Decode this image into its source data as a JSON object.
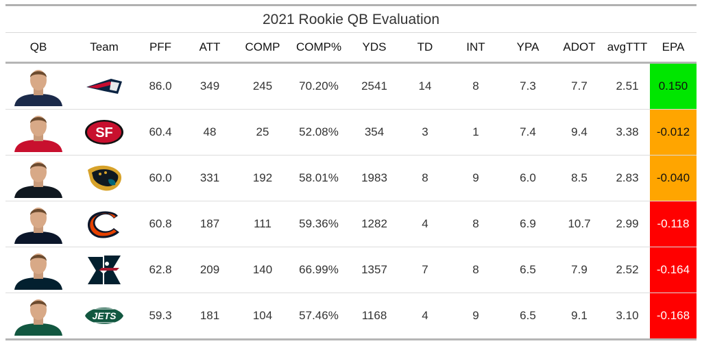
{
  "title": "2021 Rookie QB Evaluation",
  "columns": [
    "QB",
    "Team",
    "PFF",
    "ATT",
    "COMP",
    "COMP%",
    "YDS",
    "TD",
    "INT",
    "YPA",
    "ADOT",
    "avgTTT",
    "EPA"
  ],
  "colors": {
    "positive": "#00e600",
    "slightly_negative": "#ffa500",
    "negative": "#ff0000"
  },
  "rows": [
    {
      "qb_icon": "qb-headshot",
      "team_icon": "patriots-logo",
      "jersey": "#1b2a4a",
      "pff": "86.0",
      "att": "349",
      "comp": "245",
      "comp_pct": "70.20%",
      "yds": "2541",
      "td": "14",
      "int": "8",
      "ypa": "7.3",
      "adot": "7.7",
      "avgttt": "2.51",
      "epa": "0.150",
      "epa_color": "#00e600"
    },
    {
      "qb_icon": "qb-headshot",
      "team_icon": "49ers-logo",
      "jersey": "#c8102e",
      "pff": "60.4",
      "att": "48",
      "comp": "25",
      "comp_pct": "52.08%",
      "yds": "354",
      "td": "3",
      "int": "1",
      "ypa": "7.4",
      "adot": "9.4",
      "avgttt": "3.38",
      "epa": "-0.012",
      "epa_color": "#ffa500"
    },
    {
      "qb_icon": "qb-headshot",
      "team_icon": "jaguars-logo",
      "jersey": "#101820",
      "pff": "60.0",
      "att": "331",
      "comp": "192",
      "comp_pct": "58.01%",
      "yds": "1983",
      "td": "8",
      "int": "9",
      "ypa": "6.0",
      "adot": "8.5",
      "avgttt": "2.83",
      "epa": "-0.040",
      "epa_color": "#ffa500"
    },
    {
      "qb_icon": "qb-headshot",
      "team_icon": "bears-logo",
      "jersey": "#0b162a",
      "pff": "60.8",
      "att": "187",
      "comp": "111",
      "comp_pct": "59.36%",
      "yds": "1282",
      "td": "4",
      "int": "8",
      "ypa": "6.9",
      "adot": "10.7",
      "avgttt": "2.99",
      "epa": "-0.118",
      "epa_color": "#ff0000"
    },
    {
      "qb_icon": "qb-headshot",
      "team_icon": "texans-logo",
      "jersey": "#03202f",
      "pff": "62.8",
      "att": "209",
      "comp": "140",
      "comp_pct": "66.99%",
      "yds": "1357",
      "td": "7",
      "int": "8",
      "ypa": "6.5",
      "adot": "7.9",
      "avgttt": "2.52",
      "epa": "-0.164",
      "epa_color": "#ff0000"
    },
    {
      "qb_icon": "qb-headshot",
      "team_icon": "jets-logo",
      "jersey": "#125740",
      "pff": "59.3",
      "att": "181",
      "comp": "104",
      "comp_pct": "57.46%",
      "yds": "1168",
      "td": "4",
      "int": "9",
      "ypa": "6.5",
      "adot": "9.1",
      "avgttt": "3.10",
      "epa": "-0.168",
      "epa_color": "#ff0000"
    }
  ],
  "chart_data": {
    "type": "table",
    "title": "2021 Rookie QB Evaluation",
    "columns": [
      "QB",
      "Team",
      "PFF",
      "ATT",
      "COMP",
      "COMP%",
      "YDS",
      "TD",
      "INT",
      "YPA",
      "ADOT",
      "avgTTT",
      "EPA"
    ],
    "rows": [
      [
        "",
        "",
        86.0,
        349,
        245,
        "70.20%",
        2541,
        14,
        8,
        7.3,
        7.7,
        2.51,
        0.15
      ],
      [
        "",
        "",
        60.4,
        48,
        25,
        "52.08%",
        354,
        3,
        1,
        7.4,
        9.4,
        3.38,
        -0.012
      ],
      [
        "",
        "",
        60.0,
        331,
        192,
        "58.01%",
        1983,
        8,
        9,
        6.0,
        8.5,
        2.83,
        -0.04
      ],
      [
        "",
        "",
        60.8,
        187,
        111,
        "59.36%",
        1282,
        4,
        8,
        6.9,
        10.7,
        2.99,
        -0.118
      ],
      [
        "",
        "",
        62.8,
        209,
        140,
        "66.99%",
        1357,
        7,
        8,
        6.5,
        7.9,
        2.52,
        -0.164
      ],
      [
        "",
        "",
        59.3,
        181,
        104,
        "57.46%",
        1168,
        4,
        9,
        6.5,
        9.1,
        3.1,
        -0.168
      ]
    ]
  }
}
